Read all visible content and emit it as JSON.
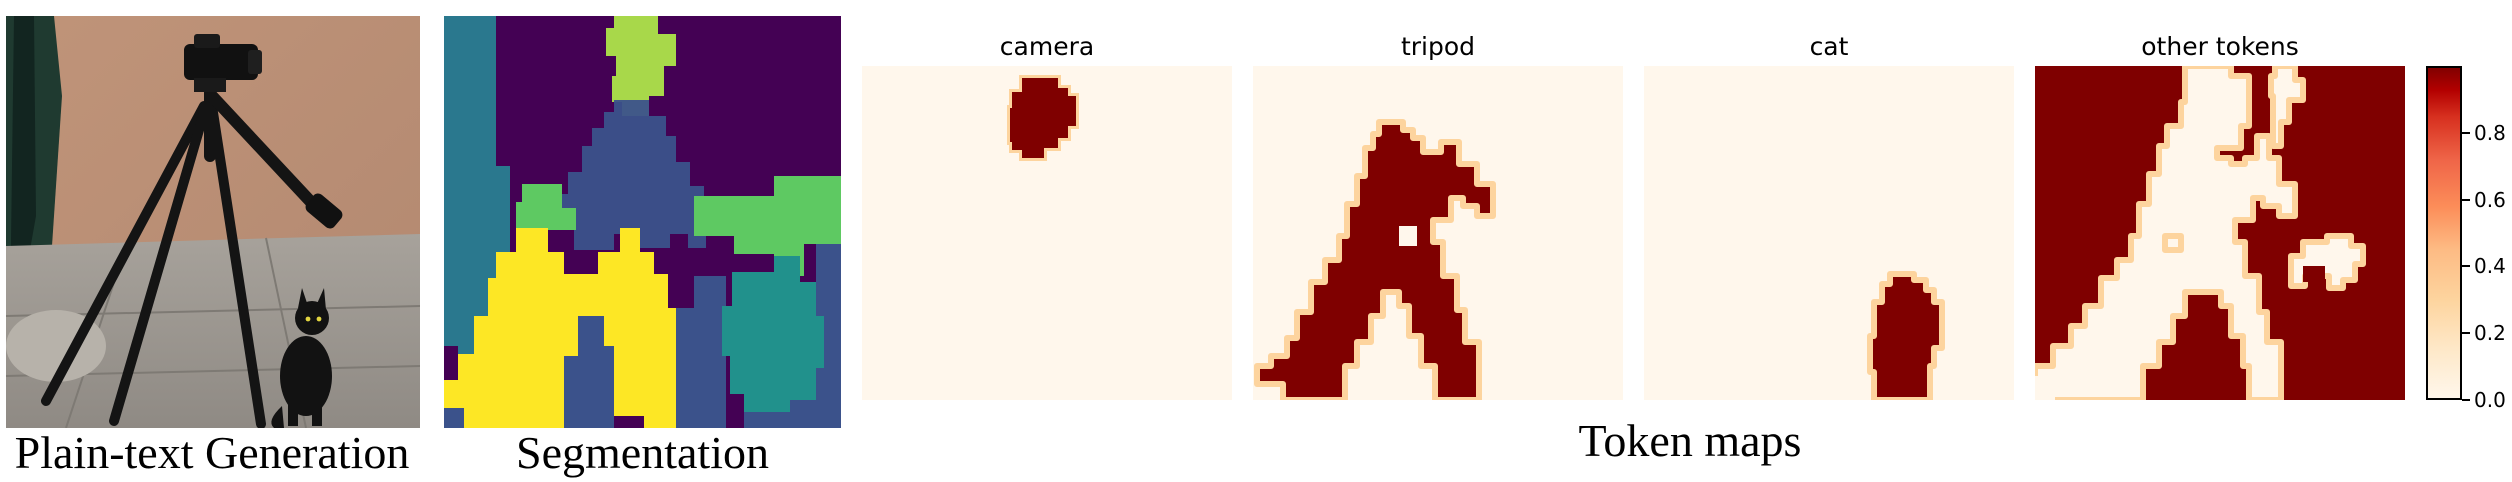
{
  "figure": {
    "photo_caption": "Plain-text Generation",
    "segmentation_caption": "Segmentation",
    "token_maps_caption": "Token maps",
    "token_maps": [
      {
        "title": "camera"
      },
      {
        "title": "tripod"
      },
      {
        "title": "cat"
      },
      {
        "title": "other tokens"
      }
    ],
    "colorbar": {
      "ticks": [
        "0.0",
        "0.2",
        "0.4",
        "0.6",
        "0.8"
      ],
      "min": 0.0,
      "max": 1.0,
      "colormap": "OrRd",
      "low_color": "#fff7ec",
      "high_color": "#7f0000"
    },
    "segmentation_colors": [
      "#440154",
      "#3b528b",
      "#21918c",
      "#5ec962",
      "#fde725",
      "#31688e",
      "#a8d84a",
      "#2a788e"
    ]
  }
}
